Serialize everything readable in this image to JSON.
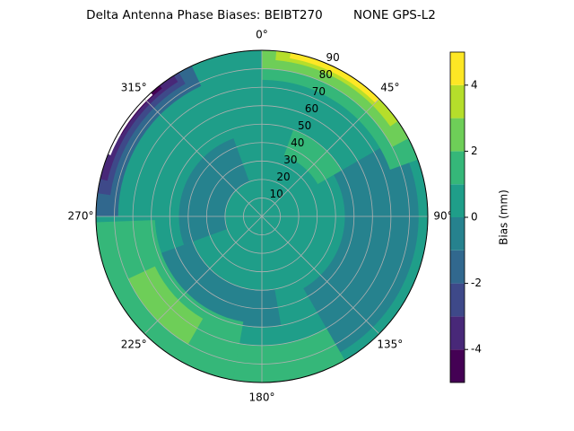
{
  "chart_data": {
    "type": "polar_contour",
    "title": "Delta Antenna Phase Biases: BEIBT270        NONE GPS-L2",
    "theta_ticks": [
      {
        "value": 0,
        "label": "0°"
      },
      {
        "value": 45,
        "label": "45°"
      },
      {
        "value": 90,
        "label": "90°"
      },
      {
        "value": 135,
        "label": "135°"
      },
      {
        "value": 180,
        "label": "180°"
      },
      {
        "value": 225,
        "label": "225°"
      },
      {
        "value": 270,
        "label": "270°"
      },
      {
        "value": 315,
        "label": "315°"
      }
    ],
    "rlim": [
      0,
      90
    ],
    "rticks": [
      10,
      20,
      30,
      40,
      50,
      60,
      70,
      80,
      90
    ],
    "grid": true,
    "levels": [
      -5,
      -4,
      -3,
      -2,
      -1,
      0,
      1,
      2,
      3,
      4,
      5
    ],
    "colors": [
      "#440154",
      "#482878",
      "#3e4989",
      "#31688e",
      "#26828e",
      "#1f9e89",
      "#35b779",
      "#6ece58",
      "#b5de2b",
      "#fde725"
    ],
    "colorbar": {
      "label": "Bias (mm)",
      "lim": [
        -5,
        5
      ],
      "ticks": [
        -4,
        -2,
        0,
        2,
        4
      ]
    }
  }
}
